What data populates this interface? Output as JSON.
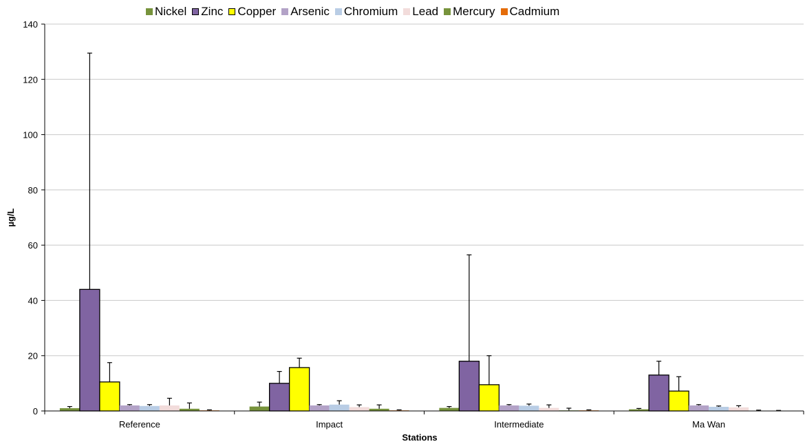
{
  "chart_data": {
    "type": "bar",
    "title": "",
    "xlabel": "Stations",
    "ylabel": "µg/L",
    "ylim": [
      0,
      140
    ],
    "yticks": [
      0,
      20,
      40,
      60,
      80,
      100,
      120,
      140
    ],
    "grid": true,
    "legend_position": "top",
    "categories": [
      "Reference",
      "Impact",
      "Intermediate",
      "Ma Wan"
    ],
    "series": [
      {
        "name": "Nickel",
        "color": "#77933C",
        "outlined": false,
        "values": [
          1.0,
          1.6,
          1.1,
          0.6
        ],
        "errors": [
          0.6,
          1.6,
          0.5,
          0.3
        ]
      },
      {
        "name": "Zinc",
        "color": "#8064A2",
        "outlined": true,
        "values": [
          44.0,
          10.0,
          18.0,
          13.0
        ],
        "errors": [
          85.5,
          4.3,
          38.5,
          5.0
        ]
      },
      {
        "name": "Copper",
        "color": "#FFFF00",
        "outlined": true,
        "values": [
          10.5,
          15.7,
          9.5,
          7.2
        ],
        "errors": [
          7.0,
          3.4,
          10.5,
          5.2
        ]
      },
      {
        "name": "Arsenic",
        "color": "#B3A2C7",
        "outlined": false,
        "values": [
          2.0,
          2.0,
          2.0,
          2.0
        ],
        "errors": [
          0.3,
          0.3,
          0.3,
          0.3
        ]
      },
      {
        "name": "Chromium",
        "color": "#B9CDE5",
        "outlined": false,
        "values": [
          1.8,
          2.3,
          1.9,
          1.5
        ],
        "errors": [
          0.5,
          1.4,
          0.6,
          0.3
        ]
      },
      {
        "name": "Lead",
        "color": "#F2DCDB",
        "outlined": false,
        "values": [
          2.0,
          1.4,
          1.1,
          1.3
        ],
        "errors": [
          2.6,
          0.8,
          1.1,
          0.6
        ]
      },
      {
        "name": "Mercury",
        "color": "#77933C",
        "outlined": false,
        "values": [
          0.8,
          0.8,
          0.2,
          0.1
        ],
        "errors": [
          2.1,
          1.4,
          0.8,
          0.2
        ]
      },
      {
        "name": "Cadmium",
        "color": "#E46C0A",
        "outlined": false,
        "values": [
          0.2,
          0.2,
          0.2,
          0.1
        ],
        "errors": [
          0.2,
          0.2,
          0.2,
          0.1
        ]
      }
    ]
  }
}
